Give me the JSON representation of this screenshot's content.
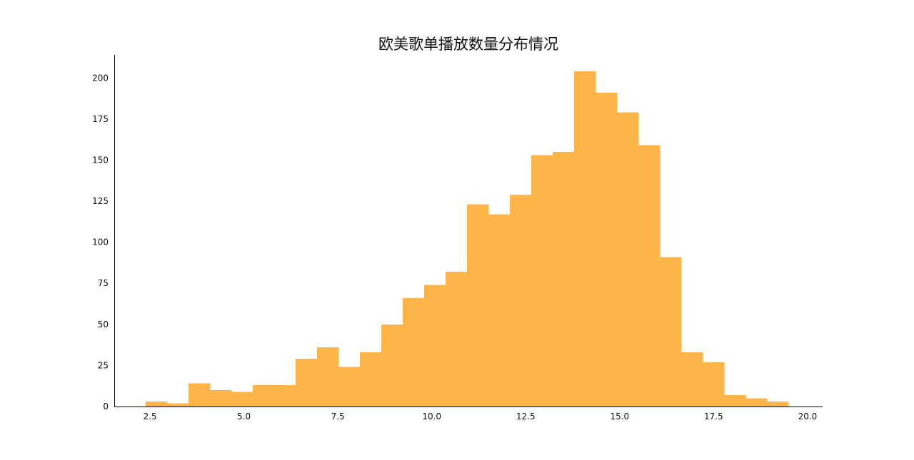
{
  "chart_data": {
    "type": "bar",
    "title": "欧美歌单播放数量分布情况",
    "xlabel": "",
    "ylabel": "",
    "xlim": [
      1.55,
      20.4
    ],
    "ylim": [
      0,
      214
    ],
    "xticks": [
      "2.5",
      "5.0",
      "7.5",
      "10.0",
      "12.5",
      "15.0",
      "17.5",
      "20.0"
    ],
    "yticks": [
      "0",
      "25",
      "50",
      "75",
      "100",
      "125",
      "150",
      "175",
      "200"
    ],
    "grid": false,
    "bar_color": "#fdb54a",
    "bin_edges": [
      2.39,
      2.96,
      3.53,
      4.1,
      4.67,
      5.24,
      5.81,
      6.38,
      6.95,
      7.52,
      8.09,
      8.66,
      9.23,
      9.8,
      10.37,
      10.94,
      11.51,
      12.08,
      12.65,
      13.22,
      13.79,
      14.36,
      14.93,
      15.5,
      16.07,
      16.64,
      17.21,
      17.78,
      18.35,
      18.92,
      19.49
    ],
    "counts": [
      3,
      2,
      14,
      10,
      9,
      13,
      13,
      29,
      36,
      24,
      33,
      50,
      66,
      74,
      82,
      123,
      117,
      129,
      153,
      155,
      204,
      191,
      179,
      159,
      91,
      33,
      27,
      7,
      5,
      3
    ]
  }
}
